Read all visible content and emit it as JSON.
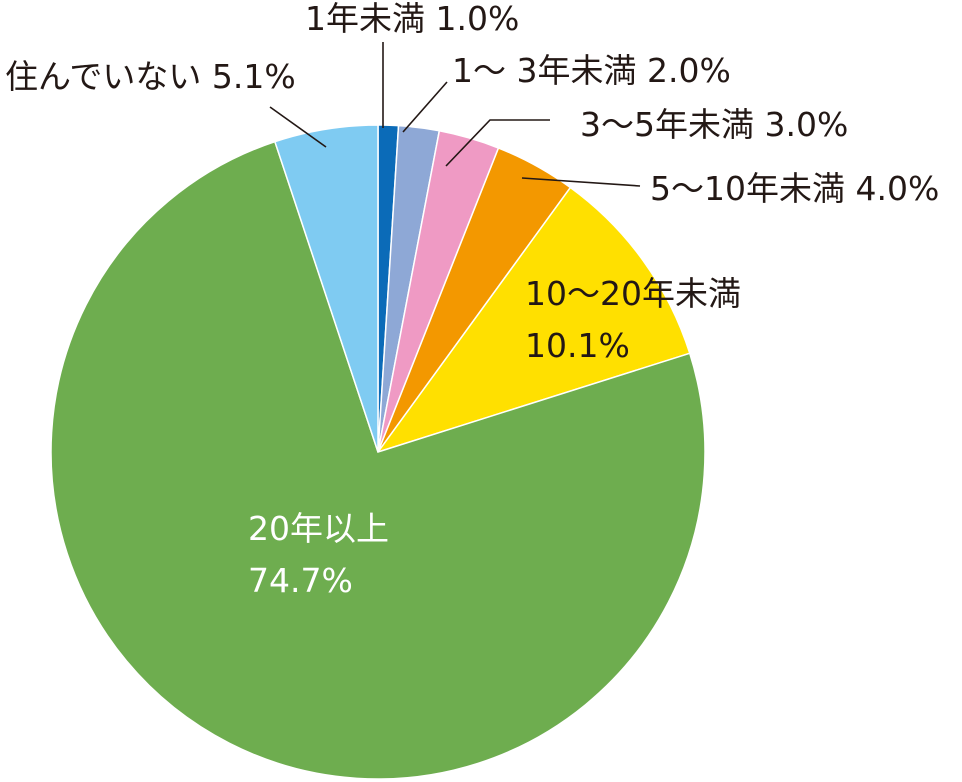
{
  "chart_data": {
    "type": "pie",
    "slices": [
      {
        "label": "1年未満",
        "value": 1.0,
        "display": "1.0%",
        "color": "#0b6bb8"
      },
      {
        "label": "1～ 3年未満",
        "value": 2.0,
        "display": "2.0%",
        "color": "#8ea8d6"
      },
      {
        "label": "3～5年未満",
        "value": 3.0,
        "display": "3.0%",
        "color": "#ef9ac4"
      },
      {
        "label": "5～10年未満",
        "value": 4.0,
        "display": "4.0%",
        "color": "#f39800"
      },
      {
        "label": "10～20年未満",
        "value": 10.1,
        "display": "10.1%",
        "color": "#ffe000"
      },
      {
        "label": "20年以上",
        "value": 74.7,
        "display": "74.7%",
        "color": "#6ead4f"
      },
      {
        "label": "住んでいない",
        "value": 5.1,
        "display": "5.1%",
        "color": "#7fcbf2"
      }
    ],
    "title": "",
    "legend": "none",
    "start_angle": "12 o'clock, clockwise"
  }
}
